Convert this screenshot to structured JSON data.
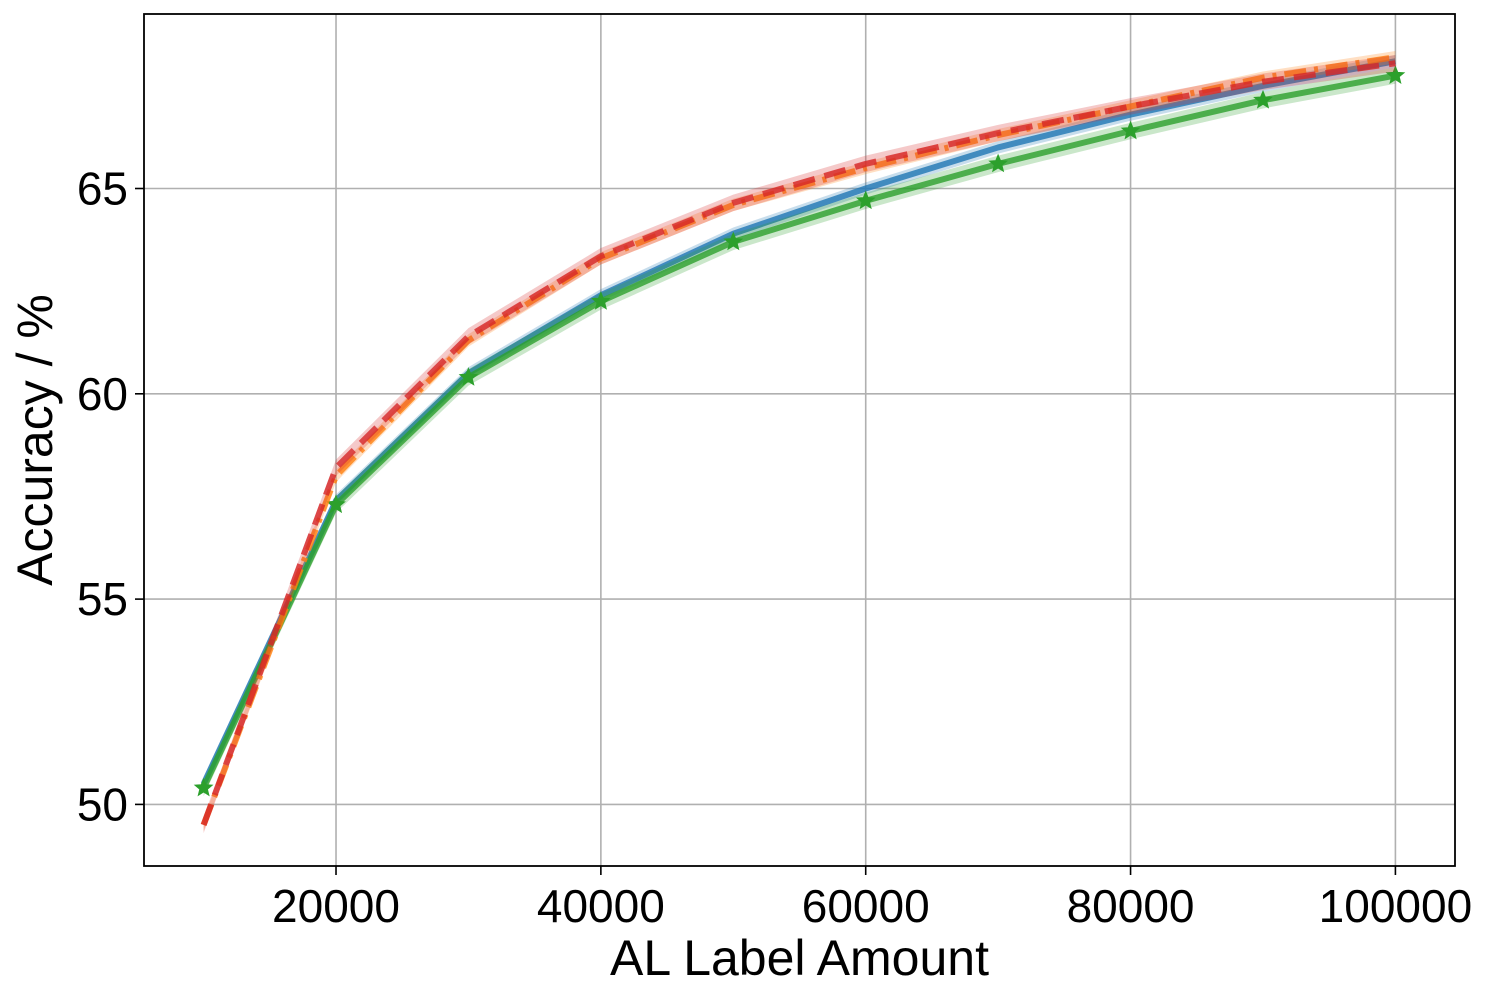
{
  "chart_data": {
    "type": "line",
    "xlabel": "AL Label Amount",
    "ylabel": "Accuracy / %",
    "xlim": [
      5500,
      104500
    ],
    "ylim": [
      48.5,
      69.25
    ],
    "x_ticks": [
      20000,
      40000,
      60000,
      80000,
      100000
    ],
    "y_ticks": [
      50,
      55,
      60,
      65
    ],
    "grid": true,
    "legend": "none",
    "x": [
      10000,
      20000,
      30000,
      40000,
      50000,
      60000,
      70000,
      80000,
      90000,
      100000
    ],
    "series": [
      {
        "color": "#1f77b4",
        "style": "solid",
        "marker": "none",
        "values": [
          50.5,
          57.4,
          60.5,
          62.4,
          63.9,
          65.0,
          66.0,
          66.8,
          67.5,
          68.1
        ],
        "band": 0.15
      },
      {
        "color": "#2ca02c",
        "style": "solid",
        "marker": "star",
        "values": [
          50.4,
          57.3,
          60.4,
          62.25,
          63.7,
          64.7,
          65.6,
          66.4,
          67.15,
          67.75
        ],
        "band": 0.2
      },
      {
        "color": "#ff7f0e",
        "style": "dashdot",
        "marker": "none",
        "values": [
          49.5,
          58.0,
          61.3,
          63.3,
          64.6,
          65.5,
          66.3,
          67.0,
          67.7,
          68.2
        ],
        "band": 0.15
      },
      {
        "color": "#d62728",
        "style": "dashed",
        "marker": "none",
        "values": [
          49.5,
          58.2,
          61.4,
          63.35,
          64.65,
          65.6,
          66.35,
          67.0,
          67.6,
          68.05
        ],
        "band": 0.2
      }
    ]
  }
}
